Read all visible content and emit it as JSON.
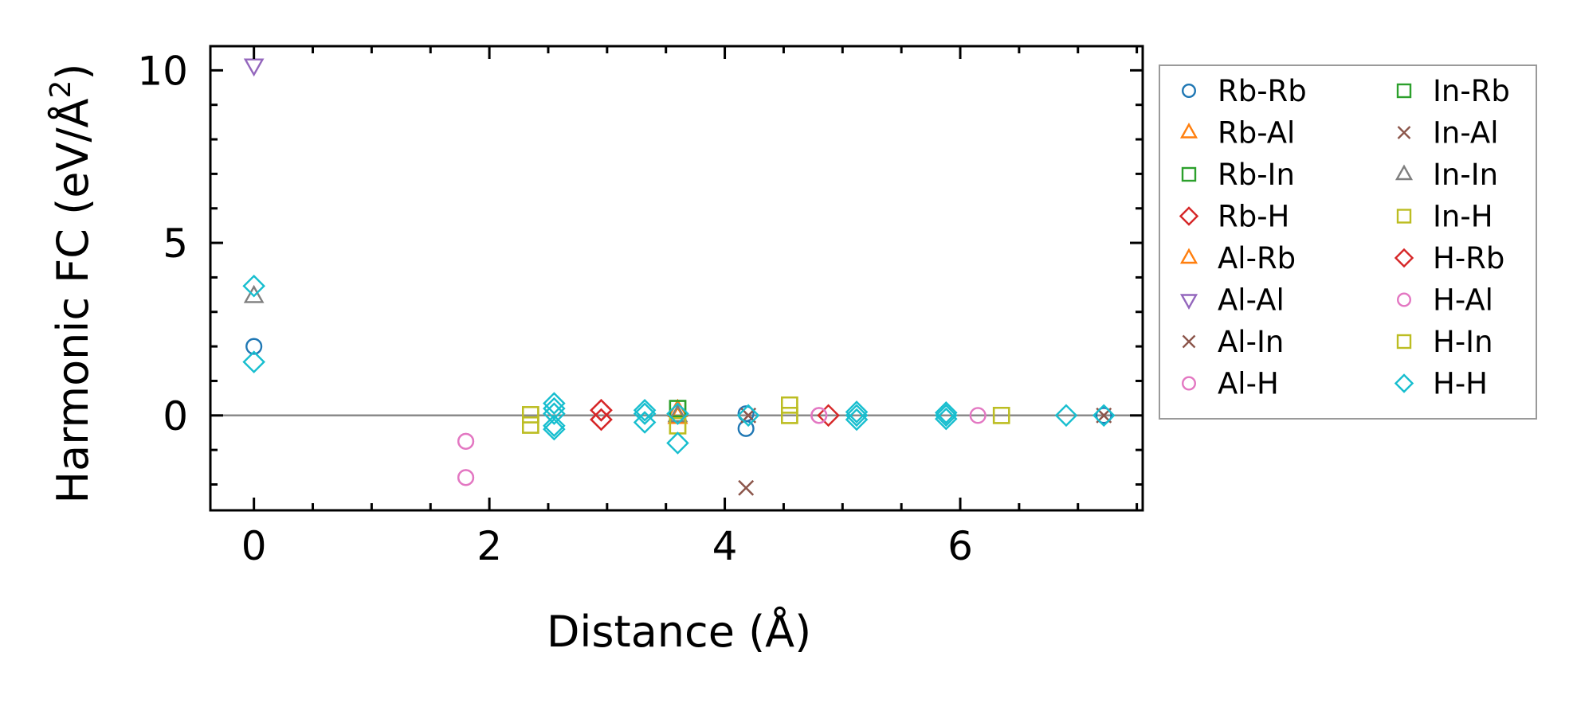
{
  "chart_data": {
    "type": "scatter",
    "title": "",
    "xlabel": "Distance (Å)",
    "ylabel_main": "Harmonic FC (eV/Å",
    "ylabel_sup": "2",
    "ylabel_close": ")",
    "xlim": [
      -0.37,
      7.55
    ],
    "ylim": [
      -2.75,
      10.7
    ],
    "xticks": [
      0,
      2,
      4,
      6
    ],
    "xtick_labels": [
      "0",
      "2",
      "4",
      "6"
    ],
    "yticks": [
      0,
      5,
      10
    ],
    "ytick_labels": [
      "0",
      "5",
      "10"
    ],
    "reference_line_y": 0,
    "legend_position": "outside-right",
    "series": [
      {
        "name": "Rb-Rb",
        "marker": "circle",
        "color": "#1f77b4",
        "points": [
          [
            0,
            2.0
          ],
          [
            4.18,
            -0.38
          ],
          [
            4.18,
            0.05
          ],
          [
            7.22,
            0.0
          ]
        ]
      },
      {
        "name": "Rb-Al",
        "marker": "triangle-up",
        "color": "#ff7f0e",
        "points": [
          [
            3.6,
            0.15
          ],
          [
            3.6,
            -0.05
          ]
        ]
      },
      {
        "name": "Rb-In",
        "marker": "square",
        "color": "#2ca02c",
        "points": [
          [
            3.6,
            0.2
          ]
        ]
      },
      {
        "name": "Rb-H",
        "marker": "diamond",
        "color": "#d62728",
        "points": [
          [
            2.95,
            0.15
          ],
          [
            2.95,
            -0.12
          ]
        ]
      },
      {
        "name": "Al-Rb",
        "marker": "triangle-up",
        "color": "#ff7f0e",
        "points": [
          [
            3.6,
            0.15
          ],
          [
            3.6,
            -0.05
          ]
        ]
      },
      {
        "name": "Al-Al",
        "marker": "triangle-down",
        "color": "#9467bd",
        "points": [
          [
            0,
            10.15
          ]
        ]
      },
      {
        "name": "Al-In",
        "marker": "x",
        "color": "#8c564b",
        "points": [
          [
            4.18,
            -2.1
          ],
          [
            4.2,
            0.0
          ],
          [
            7.22,
            0.0
          ]
        ]
      },
      {
        "name": "Al-H",
        "marker": "circle",
        "color": "#e377c2",
        "points": [
          [
            1.8,
            -0.75
          ],
          [
            1.8,
            -1.8
          ],
          [
            4.8,
            0.0
          ]
        ]
      },
      {
        "name": "In-Rb",
        "marker": "square",
        "color": "#2ca02c",
        "points": [
          [
            3.6,
            0.2
          ]
        ]
      },
      {
        "name": "In-Al",
        "marker": "x",
        "color": "#8c564b",
        "points": [
          [
            4.18,
            -2.1
          ],
          [
            4.2,
            0.0
          ],
          [
            7.22,
            0.0
          ]
        ]
      },
      {
        "name": "In-In",
        "marker": "triangle-up",
        "color": "#7f7f7f",
        "points": [
          [
            0,
            3.45
          ],
          [
            3.6,
            0.0
          ]
        ]
      },
      {
        "name": "In-H",
        "marker": "square",
        "color": "#bcbd22",
        "points": [
          [
            2.35,
            -0.28
          ],
          [
            2.35,
            0.02
          ],
          [
            3.6,
            -0.3
          ],
          [
            4.55,
            0.3
          ],
          [
            4.55,
            0.0
          ],
          [
            6.35,
            0.0
          ]
        ]
      },
      {
        "name": "H-Rb",
        "marker": "diamond",
        "color": "#d62728",
        "points": [
          [
            2.95,
            0.15
          ],
          [
            2.95,
            -0.12
          ],
          [
            4.88,
            0.0
          ]
        ]
      },
      {
        "name": "H-Al",
        "marker": "circle",
        "color": "#e377c2",
        "points": [
          [
            1.8,
            -0.75
          ],
          [
            1.8,
            -1.8
          ],
          [
            4.8,
            0.0
          ],
          [
            6.15,
            0.0
          ]
        ]
      },
      {
        "name": "H-In",
        "marker": "square",
        "color": "#bcbd22",
        "points": [
          [
            2.35,
            -0.28
          ],
          [
            2.35,
            0.02
          ],
          [
            3.6,
            -0.3
          ],
          [
            4.55,
            0.3
          ],
          [
            4.55,
            0.0
          ],
          [
            6.35,
            0.0
          ]
        ]
      },
      {
        "name": "H-H",
        "marker": "diamond",
        "color": "#17becf",
        "points": [
          [
            0,
            3.75
          ],
          [
            0,
            1.55
          ],
          [
            2.55,
            0.35
          ],
          [
            2.55,
            0.2
          ],
          [
            2.55,
            0.05
          ],
          [
            2.55,
            -0.3
          ],
          [
            2.55,
            -0.4
          ],
          [
            3.32,
            0.15
          ],
          [
            3.32,
            0.05
          ],
          [
            3.32,
            -0.2
          ],
          [
            3.6,
            -0.8
          ],
          [
            3.6,
            0.05
          ],
          [
            4.2,
            0.0
          ],
          [
            5.12,
            0.1
          ],
          [
            5.12,
            0.0
          ],
          [
            5.12,
            -0.12
          ],
          [
            5.88,
            0.08
          ],
          [
            5.88,
            0.0
          ],
          [
            5.88,
            -0.1
          ],
          [
            6.9,
            0.0
          ],
          [
            7.22,
            0.0
          ]
        ]
      }
    ]
  }
}
